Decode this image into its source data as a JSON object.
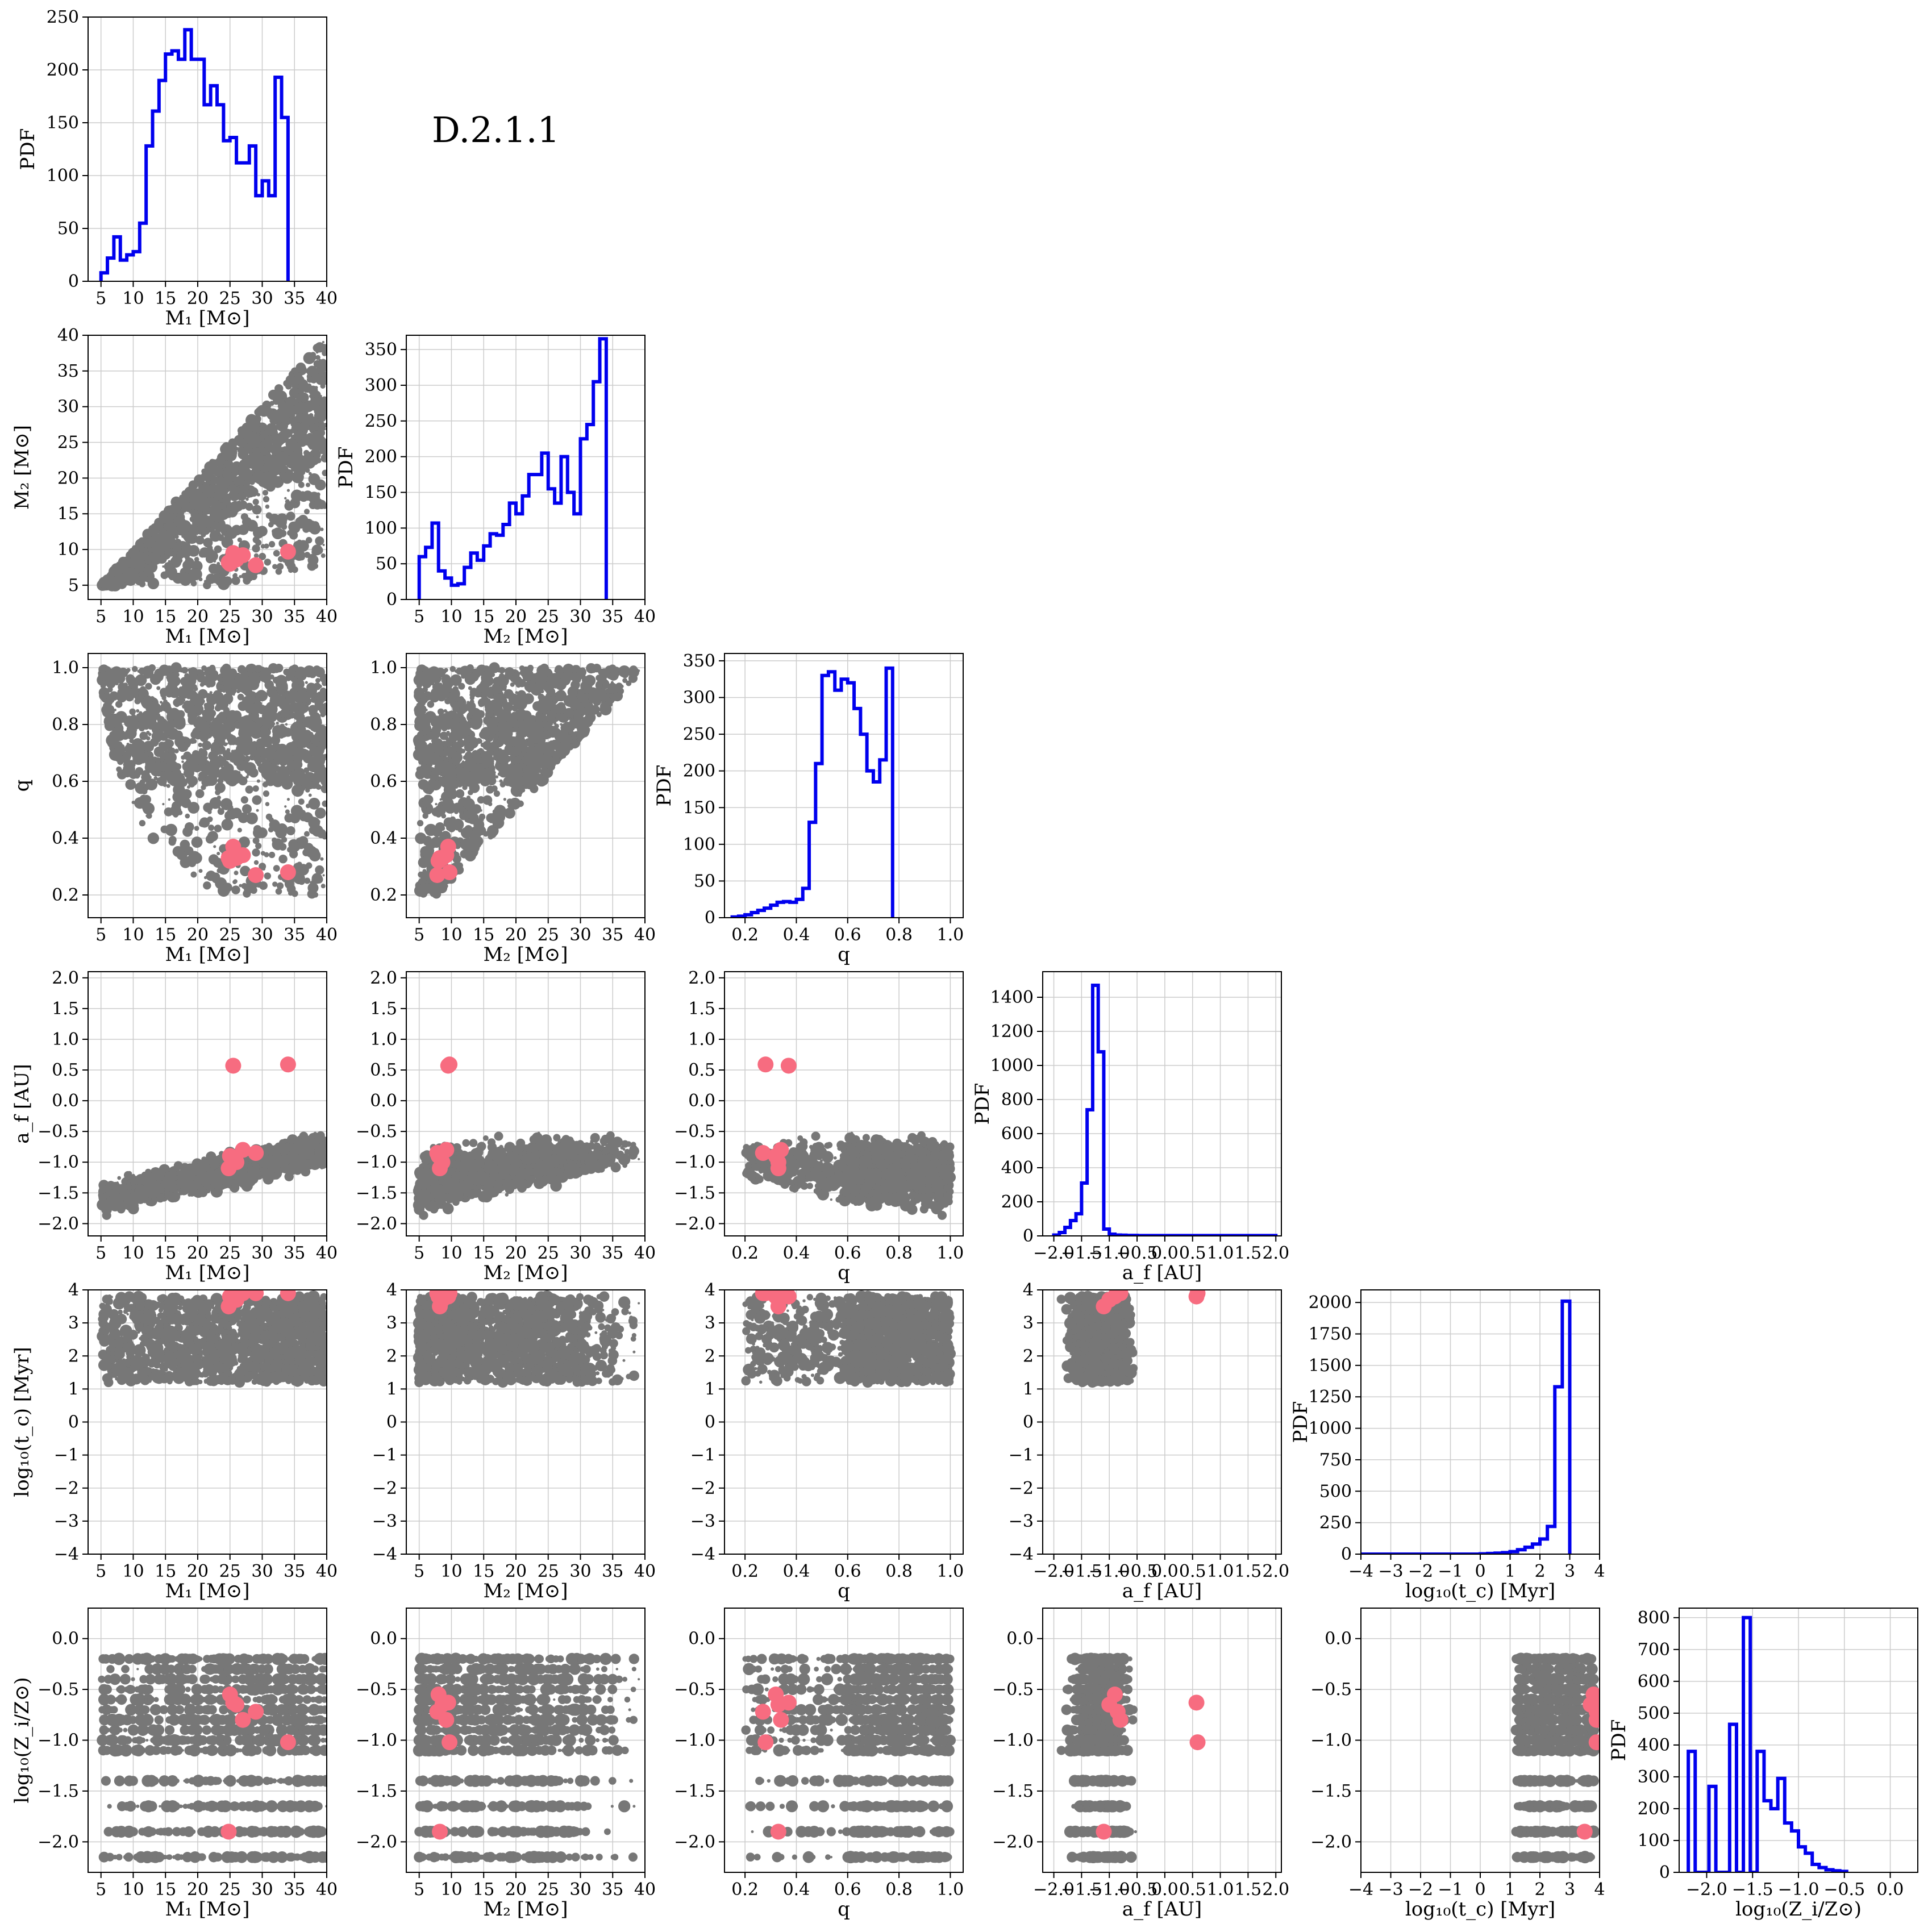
{
  "figure": {
    "label": "D.2.1.1",
    "pdf_label": "PDF",
    "colors": {
      "histogram": "#0000ee",
      "background_points": "#777777",
      "highlight_points": "#f76c80",
      "grid": "#cccccc",
      "axes": "#000000"
    }
  },
  "chart_data": {
    "type": "corner",
    "variables": [
      {
        "key": "M1",
        "label": "M₁ [M⊙]",
        "range": [
          3,
          40
        ],
        "ticks": [
          5,
          10,
          15,
          20,
          25,
          30,
          35,
          40
        ],
        "tick_labels": [
          "5",
          "10",
          "15",
          "20",
          "25",
          "30",
          "35",
          "40"
        ]
      },
      {
        "key": "M2",
        "label": "M₂ [M⊙]",
        "range": [
          3,
          40
        ],
        "ticks": [
          5,
          10,
          15,
          20,
          25,
          30,
          35,
          40
        ],
        "tick_labels": [
          "5",
          "10",
          "15",
          "20",
          "25",
          "30",
          "35",
          "40"
        ]
      },
      {
        "key": "q",
        "label": "q",
        "range": [
          0.12,
          1.05
        ],
        "ticks": [
          0.2,
          0.4,
          0.6,
          0.8,
          1.0
        ],
        "tick_labels": [
          "0.2",
          "0.4",
          "0.6",
          "0.8",
          "1.0"
        ]
      },
      {
        "key": "af",
        "label": "a_f [AU]",
        "range": [
          -2.2,
          2.1
        ],
        "ticks": [
          -2.0,
          -1.5,
          -1.0,
          -0.5,
          0.0,
          0.5,
          1.0,
          1.5,
          2.0
        ],
        "tick_labels": [
          "−2.0",
          "−1.5",
          "−1.0",
          "−0.5",
          "0.0",
          "0.5",
          "1.0",
          "1.5",
          "2.0"
        ]
      },
      {
        "key": "tc",
        "label": "log₁₀(t_c) [Myr]",
        "range": [
          -4,
          4
        ],
        "ticks": [
          -4,
          -3,
          -2,
          -1,
          0,
          1,
          2,
          3,
          4
        ],
        "tick_labels": [
          "−4",
          "−3",
          "−2",
          "−1",
          "0",
          "1",
          "2",
          "3",
          "4"
        ]
      },
      {
        "key": "Z",
        "label": "log₁₀(Z_i/Z⊙)",
        "range": [
          -2.3,
          0.3
        ],
        "ticks": [
          -2.0,
          -1.5,
          -1.0,
          -0.5,
          0.0
        ],
        "tick_labels": [
          "−2.0",
          "−1.5",
          "−1.0",
          "−0.5",
          "0.0"
        ]
      }
    ],
    "histograms": [
      {
        "variable": "M1",
        "edges_start": 5,
        "bin_width": 1,
        "ylim": [
          0,
          250
        ],
        "yticks": [
          0,
          50,
          100,
          150,
          200,
          250
        ],
        "values": [
          8,
          22,
          42,
          20,
          25,
          28,
          55,
          128,
          161,
          190,
          215,
          218,
          210,
          238,
          210,
          210,
          167,
          185,
          167,
          133,
          136,
          112,
          112,
          128,
          81,
          95,
          81,
          193,
          155
        ]
      },
      {
        "variable": "M2",
        "edges_start": 5,
        "bin_width": 1,
        "ylim": [
          0,
          370
        ],
        "yticks": [
          0,
          50,
          100,
          150,
          200,
          250,
          300,
          350
        ],
        "values": [
          60,
          73,
          107,
          40,
          30,
          20,
          22,
          45,
          65,
          55,
          75,
          92,
          90,
          105,
          135,
          120,
          145,
          175,
          175,
          205,
          155,
          135,
          200,
          150,
          120,
          225,
          245,
          305,
          365
        ]
      },
      {
        "variable": "q",
        "edges_start": 0.15,
        "bin_width": 0.025,
        "ylim": [
          0,
          360
        ],
        "yticks": [
          0,
          50,
          100,
          150,
          200,
          250,
          300,
          350
        ],
        "values": [
          1,
          2,
          4,
          7,
          10,
          13,
          17,
          21,
          22,
          21,
          25,
          40,
          130,
          210,
          330,
          335,
          310,
          325,
          320,
          285,
          250,
          200,
          185,
          215,
          340
        ]
      },
      {
        "variable": "af",
        "edges_start": -2.0,
        "bin_width": 0.1,
        "ylim": [
          0,
          1550
        ],
        "yticks": [
          0,
          200,
          400,
          600,
          800,
          1000,
          1200,
          1400
        ],
        "values": [
          5,
          20,
          50,
          90,
          130,
          310,
          740,
          1470,
          1080,
          40,
          10,
          5,
          4,
          3,
          3,
          2,
          2,
          2,
          2,
          2,
          2,
          2,
          2,
          2,
          2,
          2,
          2,
          2,
          2,
          2,
          2,
          2,
          2,
          2,
          2,
          2,
          2,
          2,
          2,
          2
        ]
      },
      {
        "variable": "tc",
        "edges_start": -4,
        "bin_width": 0.25,
        "ylim": [
          0,
          2100
        ],
        "yticks": [
          0,
          250,
          500,
          750,
          1000,
          1250,
          1500,
          1750,
          2000
        ],
        "values": [
          0,
          0,
          0,
          0,
          0,
          0,
          0,
          0,
          0,
          0,
          0,
          0,
          0,
          0,
          0,
          0,
          2,
          5,
          8,
          12,
          20,
          35,
          55,
          80,
          120,
          220,
          1330,
          2010
        ]
      },
      {
        "variable": "Z",
        "edges_start": -2.2,
        "bin_width": 0.075,
        "ylim": [
          0,
          830
        ],
        "yticks": [
          0,
          100,
          200,
          300,
          400,
          500,
          600,
          700,
          800
        ],
        "values": [
          380,
          0,
          0,
          270,
          0,
          0,
          465,
          0,
          800,
          0,
          380,
          225,
          200,
          295,
          155,
          130,
          80,
          60,
          25,
          15,
          8,
          5,
          3
        ]
      }
    ],
    "highlight_points": [
      {
        "M1": 25.5,
        "M2": 9.5,
        "q": 0.37,
        "af": 0.57,
        "tc": 3.8,
        "Z": -0.63
      },
      {
        "M1": 34.0,
        "M2": 9.7,
        "q": 0.28,
        "af": 0.59,
        "tc": 3.9,
        "Z": -1.02
      },
      {
        "M1": 29.0,
        "M2": 7.8,
        "q": 0.27,
        "af": -0.85,
        "tc": 3.9,
        "Z": -0.72
      },
      {
        "M1": 26.0,
        "M2": 8.6,
        "q": 0.33,
        "af": -1.0,
        "tc": 3.7,
        "Z": -0.65
      },
      {
        "M1": 25.0,
        "M2": 8.0,
        "q": 0.32,
        "af": -0.9,
        "tc": 3.8,
        "Z": -0.55
      },
      {
        "M1": 27.0,
        "M2": 9.2,
        "q": 0.34,
        "af": -0.8,
        "tc": 3.9,
        "Z": -0.8
      },
      {
        "M1": 24.8,
        "M2": 8.2,
        "q": 0.33,
        "af": -1.1,
        "tc": 3.5,
        "Z": -1.9
      }
    ]
  }
}
